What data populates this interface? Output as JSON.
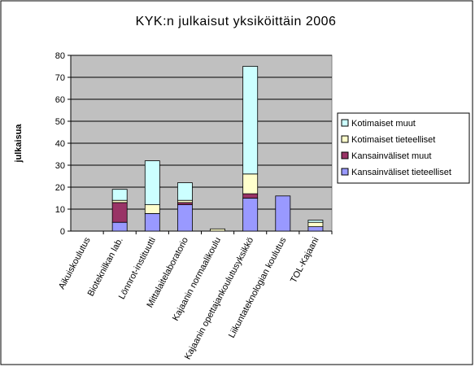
{
  "chart_data": {
    "type": "stacked_bar",
    "title": "KYK:n julkaisut yksiköittäin 2006",
    "y_label": "julkaisua",
    "categories": [
      "Aikuiskoulutus",
      "Bioteknilkan lab.",
      "Lönnrot-instituutti",
      "Mittalaitelaboratorio",
      "Kajaanin  normaalikoulu",
      "Kajaanin opettajankoulutusyksikkö",
      "Liikuntateknologian koulutus",
      "TOL-Kajaani"
    ],
    "series": [
      {
        "name": "Kansainväliset tieteelliset",
        "color": "#9999ff",
        "values": [
          0,
          4,
          8,
          12,
          0,
          15,
          16,
          2
        ]
      },
      {
        "name": "Kansainväliset muut",
        "color": "#993366",
        "values": [
          0,
          9,
          0,
          1,
          0,
          2,
          0,
          0
        ]
      },
      {
        "name": "Kotimaiset tieteelliset",
        "color": "#ffffcc",
        "values": [
          0,
          1,
          4,
          1,
          1,
          9,
          0,
          2
        ]
      },
      {
        "name": "Kotimaiset muut",
        "color": "#ccffff",
        "values": [
          0,
          5,
          20,
          8,
          0,
          49,
          0,
          1
        ]
      }
    ],
    "ylim": [
      0,
      80
    ],
    "yticks": [
      0,
      10,
      20,
      30,
      40,
      50,
      60,
      70,
      80
    ],
    "grid": true,
    "legend": "right",
    "plot_background": "#c0c0c0"
  }
}
